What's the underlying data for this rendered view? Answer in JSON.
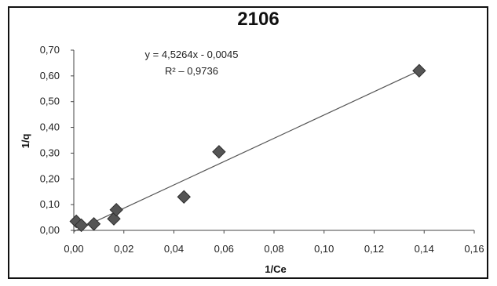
{
  "chart_data": {
    "type": "scatter",
    "title": "2106",
    "xlabel": "1/Ce",
    "ylabel": "1/q",
    "xlim": [
      0,
      0.16
    ],
    "ylim": [
      0,
      0.7
    ],
    "x_ticks": [
      "0,00",
      "0,02",
      "0,04",
      "0,06",
      "0,08",
      "0,10",
      "0,12",
      "0,14",
      "0,16"
    ],
    "y_ticks": [
      "0,00",
      "0,10",
      "0,20",
      "0,30",
      "0,40",
      "0,50",
      "0,60",
      "0,70"
    ],
    "grid": false,
    "marker": "diamond",
    "marker_color": "#555555",
    "trendline_color": "#555555",
    "series": [
      {
        "x": [
          0.001,
          0.003,
          0.008,
          0.016,
          0.017,
          0.044,
          0.058,
          0.138
        ],
        "y": [
          0.035,
          0.02,
          0.025,
          0.045,
          0.08,
          0.13,
          0.305,
          0.62
        ]
      }
    ],
    "trendline": {
      "slope": 4.5264,
      "intercept": -0.0045,
      "equation": "y = 4,5264x - 0,0045",
      "r_squared": "R² – 0,9736"
    }
  }
}
